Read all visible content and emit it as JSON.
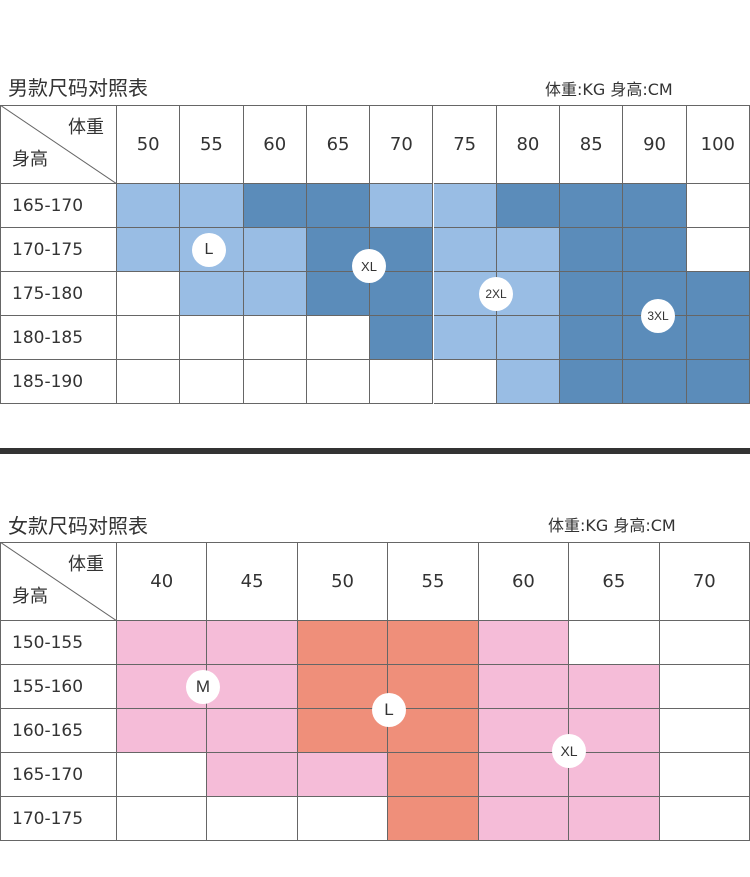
{
  "men": {
    "title": "男款尺码对照表",
    "units": "体重:KG   身高:CM",
    "corner_weight": "体重",
    "corner_height": "身高",
    "weights": [
      "50",
      "55",
      "60",
      "65",
      "70",
      "75",
      "80",
      "85",
      "90",
      "100"
    ],
    "heights": [
      "165-170",
      "170-175",
      "175-180",
      "180-185",
      "185-190"
    ],
    "sizes": [
      "L",
      "XL",
      "2XL",
      "3XL"
    ],
    "cells": [
      [
        "L",
        "L",
        "XL",
        "XL",
        "L",
        "L",
        "XL",
        "2XL",
        "2XL",
        ""
      ],
      [
        "L",
        "L",
        "L",
        "XL",
        "XL",
        "L",
        "L",
        "2XL",
        "2XL",
        ""
      ],
      [
        "",
        "L",
        "L",
        "XL",
        "XL",
        "L",
        "L",
        "2XL",
        "2XL",
        "2XL"
      ],
      [
        "",
        "",
        "",
        "",
        "XL",
        "L",
        "L",
        "2XL",
        "2XL",
        "2XL"
      ],
      [
        "",
        "",
        "",
        "",
        "",
        "",
        "L",
        "2XL",
        "2XL",
        "2XL"
      ]
    ],
    "colors": {
      "L": "#99bde4",
      "XL": "#5b8cba",
      "2XL": "#5b8cba",
      "3XL": "#5b8cba"
    }
  },
  "women": {
    "title": "女款尺码对照表",
    "units": "体重:KG   身高:CM",
    "corner_weight": "体重",
    "corner_height": "身高",
    "weights": [
      "40",
      "45",
      "50",
      "55",
      "60",
      "65",
      "70"
    ],
    "heights": [
      "150-155",
      "155-160",
      "160-165",
      "165-170",
      "170-175"
    ],
    "sizes": [
      "M",
      "L",
      "XL"
    ],
    "cells": [
      [
        "M",
        "M",
        "L",
        "L",
        "M",
        "",
        ""
      ],
      [
        "M",
        "M",
        "L",
        "L",
        "M",
        "M",
        ""
      ],
      [
        "M",
        "M",
        "L",
        "L",
        "M",
        "M",
        ""
      ],
      [
        "",
        "M",
        "M",
        "L",
        "M",
        "M",
        ""
      ],
      [
        "",
        "",
        "",
        "L",
        "M",
        "M",
        ""
      ]
    ],
    "colors": {
      "M": "#f5bcd8",
      "L": "#ef8f7a"
    }
  }
}
